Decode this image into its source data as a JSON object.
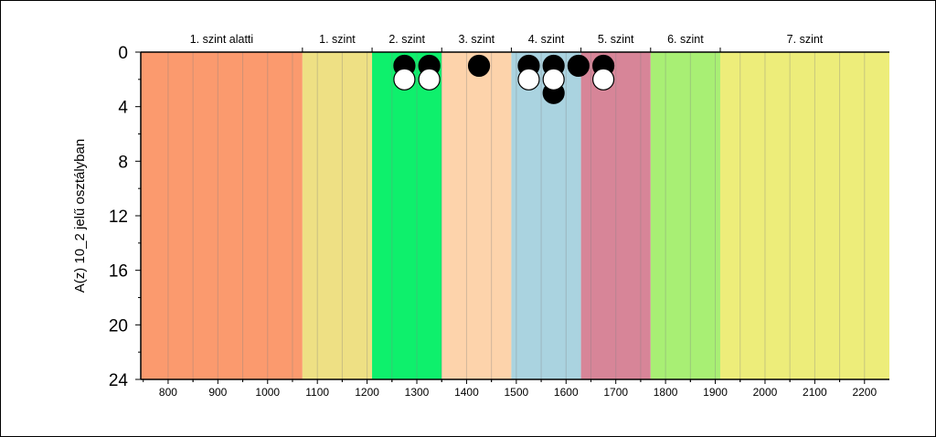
{
  "chart_data": {
    "type": "scatter",
    "ylabel": "A(z) 10_2 jelű osztályban",
    "xlim": [
      745,
      2250
    ],
    "ylim": [
      24,
      0
    ],
    "x_ticks": [
      800,
      900,
      1000,
      1100,
      1200,
      1300,
      1400,
      1500,
      1600,
      1700,
      1800,
      1900,
      2000,
      2100,
      2200
    ],
    "y_ticks": [
      0,
      4,
      8,
      12,
      16,
      20,
      24
    ],
    "grid": true,
    "bands": [
      {
        "label": "1. szint alatti",
        "from": 745,
        "to": 1070,
        "color": "#fb9a6e"
      },
      {
        "label": "1. szint",
        "from": 1070,
        "to": 1210,
        "color": "#eee084"
      },
      {
        "label": "2. szint",
        "from": 1210,
        "to": 1350,
        "color": "#0ef06c"
      },
      {
        "label": "3. szint",
        "from": 1350,
        "to": 1490,
        "color": "#fdd3ab"
      },
      {
        "label": "4. szint",
        "from": 1490,
        "to": 1630,
        "color": "#aad3e0"
      },
      {
        "label": "5. szint",
        "from": 1630,
        "to": 1770,
        "color": "#d78598"
      },
      {
        "label": "6. szint",
        "from": 1770,
        "to": 1910,
        "color": "#a8ef74"
      },
      {
        "label": "7. szint",
        "from": 1910,
        "to": 2250,
        "color": "#eded7a"
      }
    ],
    "series": [
      {
        "marker": "filled",
        "color": "#000000",
        "points": [
          {
            "x": 1275,
            "y": 1
          },
          {
            "x": 1325,
            "y": 1
          },
          {
            "x": 1425,
            "y": 1
          },
          {
            "x": 1525,
            "y": 1
          },
          {
            "x": 1575,
            "y": 1
          },
          {
            "x": 1625,
            "y": 1
          },
          {
            "x": 1675,
            "y": 1
          },
          {
            "x": 1575,
            "y": 3
          }
        ]
      },
      {
        "marker": "hollow",
        "color": "#ffffff",
        "points": [
          {
            "x": 1275,
            "y": 2
          },
          {
            "x": 1325,
            "y": 2
          },
          {
            "x": 1525,
            "y": 2
          },
          {
            "x": 1575,
            "y": 2
          },
          {
            "x": 1675,
            "y": 2
          }
        ]
      }
    ]
  }
}
